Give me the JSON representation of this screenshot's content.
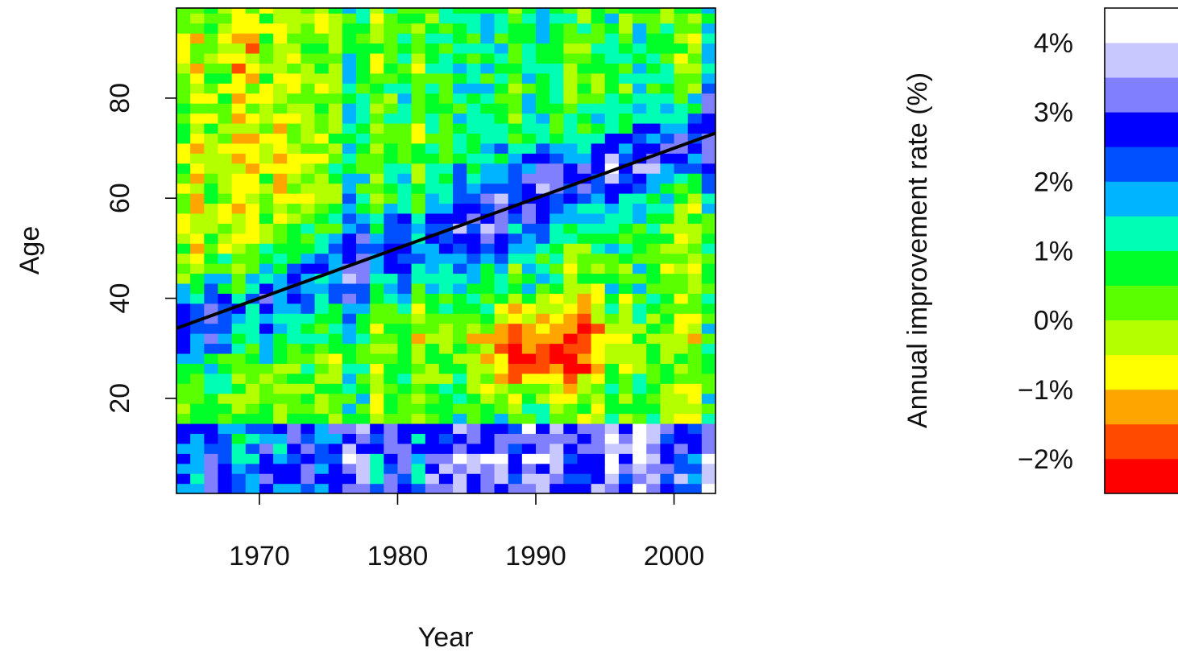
{
  "chart_data": {
    "type": "heatmap",
    "title": "",
    "xlabel": "Year",
    "ylabel": "Age",
    "x_range": [
      1964,
      2003
    ],
    "y_range": [
      1,
      98
    ],
    "x_ticks": [
      1970,
      1980,
      1990,
      2000
    ],
    "x_tick_labels": [
      "1970",
      "1980",
      "1990",
      "2000"
    ],
    "y_ticks": [
      20,
      40,
      60,
      80
    ],
    "y_tick_labels": [
      "20",
      "40",
      "60",
      "80"
    ],
    "grid": false,
    "trend_line": {
      "from": {
        "year": 1964,
        "age": 34
      },
      "to": {
        "year": 2003,
        "age": 73
      }
    },
    "colorbar": {
      "label": "Annual improvement rate (%)",
      "placement": "right",
      "ticks": [
        {
          "value": 4,
          "label": "4%"
        },
        {
          "value": 3,
          "label": "3%"
        },
        {
          "value": 2,
          "label": "2%"
        },
        {
          "value": 1,
          "label": "1%"
        },
        {
          "value": 0,
          "label": "0%"
        },
        {
          "value": -1,
          "label": "−1%"
        },
        {
          "value": -2,
          "label": "−2%"
        }
      ],
      "bins": [
        {
          "from": -2.5,
          "to": -2.0,
          "color": "#ff0000"
        },
        {
          "from": -2.0,
          "to": -1.5,
          "color": "#ff4a00"
        },
        {
          "from": -1.5,
          "to": -1.0,
          "color": "#ffa500"
        },
        {
          "from": -1.0,
          "to": -0.5,
          "color": "#ffff00"
        },
        {
          "from": -0.5,
          "to": 0.0,
          "color": "#b4ff00"
        },
        {
          "from": 0.0,
          "to": 0.5,
          "color": "#5aff00"
        },
        {
          "from": 0.5,
          "to": 1.0,
          "color": "#00ff28"
        },
        {
          "from": 1.0,
          "to": 1.5,
          "color": "#00ffb4"
        },
        {
          "from": 1.5,
          "to": 2.0,
          "color": "#00b4ff"
        },
        {
          "from": 2.0,
          "to": 2.5,
          "color": "#0050ff"
        },
        {
          "from": 2.5,
          "to": 3.0,
          "color": "#0000ff"
        },
        {
          "from": 3.0,
          "to": 3.5,
          "color": "#8080ff"
        },
        {
          "from": 3.5,
          "to": 4.0,
          "color": "#c8c8ff"
        },
        {
          "from": 4.0,
          "to": 4.5,
          "color": "#ffffff"
        }
      ]
    }
  }
}
